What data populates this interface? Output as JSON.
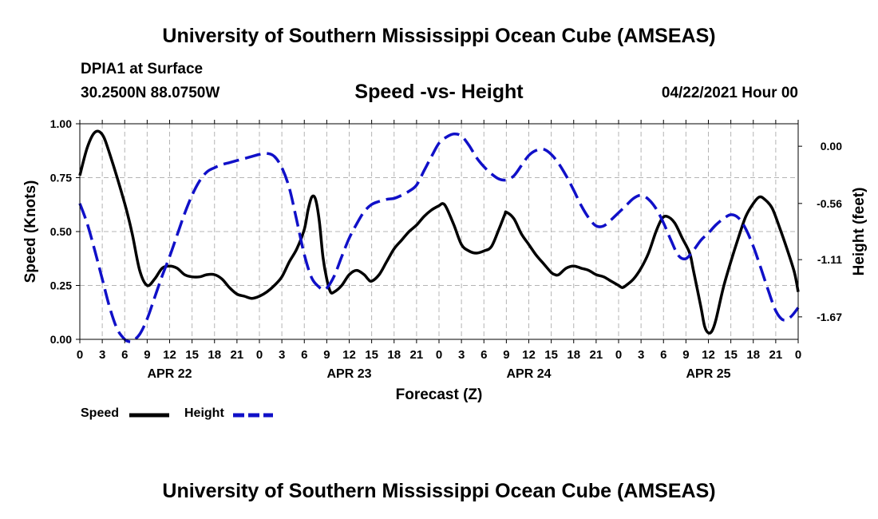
{
  "header": {
    "title": "University of Southern Mississippi Ocean Cube (AMSEAS)",
    "station": "DPIA1 at Surface",
    "coordinates": "30.2500N  88.0750W",
    "chart_title": "Speed -vs- Height",
    "date_hour": "04/22/2021 Hour 00"
  },
  "footer": {
    "title": "University of Southern Mississippi Ocean Cube (AMSEAS)"
  },
  "legend": {
    "speed_label": "Speed",
    "height_label": "Height"
  },
  "colors": {
    "speed": "#000000",
    "height": "#1010c8",
    "grid": "#b4b4b4"
  },
  "chart_data": {
    "type": "line",
    "title": "Speed -vs- Height",
    "xlabel": "Forecast (Z)",
    "ylabel": "Speed (Knots)",
    "ylabel_right": "Height (feet)",
    "x_range_hours": [
      0,
      96
    ],
    "ylim": [
      0,
      1
    ],
    "y_ticks": [
      0,
      0.25,
      0.5,
      0.75,
      1
    ],
    "y_tick_labels": [
      "0.00",
      "0.25",
      "0.50",
      "0.75",
      "1.00"
    ],
    "ylim_right": [
      -1.89,
      0.22
    ],
    "y_right_ticks": [
      0,
      -0.56,
      -1.11,
      -1.67
    ],
    "y_right_tick_labels": [
      "0.00",
      "-0.56",
      "-1.11",
      "-1.67"
    ],
    "x_ticks": [
      0,
      3,
      6,
      9,
      12,
      15,
      18,
      21,
      24,
      27,
      30,
      33,
      36,
      39,
      42,
      45,
      48,
      51,
      54,
      57,
      60,
      63,
      66,
      69,
      72,
      75,
      78,
      81,
      84,
      87,
      90,
      93,
      96
    ],
    "x_tick_labels": [
      "0",
      "3",
      "6",
      "9",
      "12",
      "15",
      "18",
      "21",
      "0",
      "3",
      "6",
      "9",
      "12",
      "15",
      "18",
      "21",
      "0",
      "3",
      "6",
      "9",
      "12",
      "15",
      "18",
      "21",
      "0",
      "3",
      "6",
      "9",
      "12",
      "15",
      "18",
      "21",
      "0"
    ],
    "day_labels": [
      {
        "hour": 12,
        "label": "APR 22"
      },
      {
        "hour": 36,
        "label": "APR 23"
      },
      {
        "hour": 60,
        "label": "APR 24"
      },
      {
        "hour": 84,
        "label": "APR 25"
      }
    ],
    "grid": true,
    "series": [
      {
        "name": "Speed",
        "axis": "left",
        "style": "solid",
        "points": [
          [
            0,
            0.76
          ],
          [
            1,
            0.89
          ],
          [
            2,
            0.96
          ],
          [
            3,
            0.95
          ],
          [
            4,
            0.86
          ],
          [
            6,
            0.63
          ],
          [
            7,
            0.49
          ],
          [
            8,
            0.32
          ],
          [
            9,
            0.25
          ],
          [
            10,
            0.28
          ],
          [
            11,
            0.33
          ],
          [
            12,
            0.34
          ],
          [
            13,
            0.33
          ],
          [
            14,
            0.3
          ],
          [
            15,
            0.29
          ],
          [
            16,
            0.29
          ],
          [
            17,
            0.3
          ],
          [
            18,
            0.3
          ],
          [
            19,
            0.28
          ],
          [
            20,
            0.24
          ],
          [
            21,
            0.21
          ],
          [
            22,
            0.2
          ],
          [
            23,
            0.19
          ],
          [
            24,
            0.2
          ],
          [
            25,
            0.22
          ],
          [
            26,
            0.25
          ],
          [
            27,
            0.29
          ],
          [
            28,
            0.36
          ],
          [
            29,
            0.42
          ],
          [
            30,
            0.51
          ],
          [
            30.5,
            0.6
          ],
          [
            31,
            0.66
          ],
          [
            31.5,
            0.65
          ],
          [
            32,
            0.55
          ],
          [
            32.5,
            0.38
          ],
          [
            33,
            0.28
          ],
          [
            33.5,
            0.22
          ],
          [
            34,
            0.22
          ],
          [
            35,
            0.25
          ],
          [
            36,
            0.3
          ],
          [
            37,
            0.32
          ],
          [
            38,
            0.3
          ],
          [
            38.5,
            0.28
          ],
          [
            39,
            0.27
          ],
          [
            40,
            0.3
          ],
          [
            41,
            0.36
          ],
          [
            42,
            0.42
          ],
          [
            43,
            0.46
          ],
          [
            44,
            0.5
          ],
          [
            45,
            0.53
          ],
          [
            46,
            0.57
          ],
          [
            47,
            0.6
          ],
          [
            48,
            0.62
          ],
          [
            48.5,
            0.63
          ],
          [
            49,
            0.61
          ],
          [
            50,
            0.53
          ],
          [
            51,
            0.44
          ],
          [
            52,
            0.41
          ],
          [
            53,
            0.4
          ],
          [
            54,
            0.41
          ],
          [
            55,
            0.43
          ],
          [
            56,
            0.51
          ],
          [
            56.8,
            0.58
          ],
          [
            57,
            0.59
          ],
          [
            58,
            0.56
          ],
          [
            59,
            0.49
          ],
          [
            60,
            0.44
          ],
          [
            61,
            0.39
          ],
          [
            62,
            0.35
          ],
          [
            63,
            0.31
          ],
          [
            63.5,
            0.3
          ],
          [
            64,
            0.3
          ],
          [
            65,
            0.33
          ],
          [
            66,
            0.34
          ],
          [
            67,
            0.33
          ],
          [
            68,
            0.32
          ],
          [
            69,
            0.3
          ],
          [
            70,
            0.29
          ],
          [
            71,
            0.27
          ],
          [
            72,
            0.25
          ],
          [
            72.5,
            0.24
          ],
          [
            73,
            0.25
          ],
          [
            74,
            0.28
          ],
          [
            75,
            0.33
          ],
          [
            76,
            0.4
          ],
          [
            77,
            0.5
          ],
          [
            77.8,
            0.56
          ],
          [
            78.5,
            0.57
          ],
          [
            79.5,
            0.54
          ],
          [
            80.5,
            0.47
          ],
          [
            81.5,
            0.4
          ],
          [
            82,
            0.32
          ],
          [
            83,
            0.15
          ],
          [
            83.5,
            0.06
          ],
          [
            84,
            0.03
          ],
          [
            84.5,
            0.04
          ],
          [
            85,
            0.09
          ],
          [
            86,
            0.24
          ],
          [
            87,
            0.36
          ],
          [
            88,
            0.47
          ],
          [
            89,
            0.57
          ],
          [
            90,
            0.63
          ],
          [
            90.8,
            0.66
          ],
          [
            91.5,
            0.65
          ],
          [
            92.5,
            0.61
          ],
          [
            93.5,
            0.52
          ],
          [
            94.5,
            0.42
          ],
          [
            95.5,
            0.31
          ],
          [
            96,
            0.22
          ]
        ]
      },
      {
        "name": "Height",
        "axis": "right",
        "style": "dashed",
        "points": [
          [
            0,
            -0.56
          ],
          [
            1,
            -0.76
          ],
          [
            2,
            -1.02
          ],
          [
            3,
            -1.3
          ],
          [
            4,
            -1.58
          ],
          [
            5,
            -1.79
          ],
          [
            6,
            -1.89
          ],
          [
            6.5,
            -1.91
          ],
          [
            7,
            -1.91
          ],
          [
            8,
            -1.84
          ],
          [
            9,
            -1.69
          ],
          [
            10,
            -1.48
          ],
          [
            11,
            -1.27
          ],
          [
            12,
            -1.08
          ],
          [
            13,
            -0.87
          ],
          [
            14,
            -0.66
          ],
          [
            15,
            -0.48
          ],
          [
            16,
            -0.34
          ],
          [
            17,
            -0.25
          ],
          [
            18,
            -0.21
          ],
          [
            19,
            -0.18
          ],
          [
            20,
            -0.16
          ],
          [
            21,
            -0.14
          ],
          [
            22,
            -0.12
          ],
          [
            23,
            -0.1
          ],
          [
            24,
            -0.08
          ],
          [
            25,
            -0.07
          ],
          [
            26,
            -0.1
          ],
          [
            27,
            -0.21
          ],
          [
            28,
            -0.41
          ],
          [
            29,
            -0.73
          ],
          [
            30,
            -1.06
          ],
          [
            31,
            -1.29
          ],
          [
            32,
            -1.38
          ],
          [
            32.5,
            -1.4
          ],
          [
            33,
            -1.39
          ],
          [
            34,
            -1.27
          ],
          [
            35,
            -1.08
          ],
          [
            36,
            -0.9
          ],
          [
            37,
            -0.76
          ],
          [
            38,
            -0.64
          ],
          [
            39,
            -0.57
          ],
          [
            40,
            -0.54
          ],
          [
            41,
            -0.52
          ],
          [
            42,
            -0.51
          ],
          [
            43,
            -0.48
          ],
          [
            44,
            -0.44
          ],
          [
            45,
            -0.38
          ],
          [
            46,
            -0.24
          ],
          [
            47,
            -0.1
          ],
          [
            48,
            0.03
          ],
          [
            49,
            0.09
          ],
          [
            50,
            0.12
          ],
          [
            51,
            0.1
          ],
          [
            52,
            0.01
          ],
          [
            53,
            -0.11
          ],
          [
            54,
            -0.2
          ],
          [
            55,
            -0.27
          ],
          [
            56,
            -0.32
          ],
          [
            57,
            -0.33
          ],
          [
            58,
            -0.29
          ],
          [
            59,
            -0.19
          ],
          [
            60,
            -0.09
          ],
          [
            61,
            -0.04
          ],
          [
            62,
            -0.03
          ],
          [
            63,
            -0.08
          ],
          [
            64,
            -0.17
          ],
          [
            65,
            -0.29
          ],
          [
            66,
            -0.43
          ],
          [
            67,
            -0.58
          ],
          [
            68,
            -0.7
          ],
          [
            69,
            -0.78
          ],
          [
            70,
            -0.78
          ],
          [
            71,
            -0.72
          ],
          [
            72,
            -0.65
          ],
          [
            73,
            -0.58
          ],
          [
            74,
            -0.51
          ],
          [
            75,
            -0.48
          ],
          [
            76,
            -0.52
          ],
          [
            77,
            -0.61
          ],
          [
            78,
            -0.75
          ],
          [
            79,
            -0.92
          ],
          [
            80,
            -1.07
          ],
          [
            81,
            -1.1
          ],
          [
            82,
            -1.02
          ],
          [
            83,
            -0.92
          ],
          [
            84,
            -0.85
          ],
          [
            85,
            -0.77
          ],
          [
            86,
            -0.71
          ],
          [
            87,
            -0.67
          ],
          [
            88,
            -0.7
          ],
          [
            89,
            -0.81
          ],
          [
            90,
            -0.98
          ],
          [
            91,
            -1.19
          ],
          [
            92,
            -1.41
          ],
          [
            93,
            -1.61
          ],
          [
            94,
            -1.7
          ],
          [
            95,
            -1.67
          ],
          [
            96,
            -1.58
          ]
        ]
      }
    ]
  }
}
